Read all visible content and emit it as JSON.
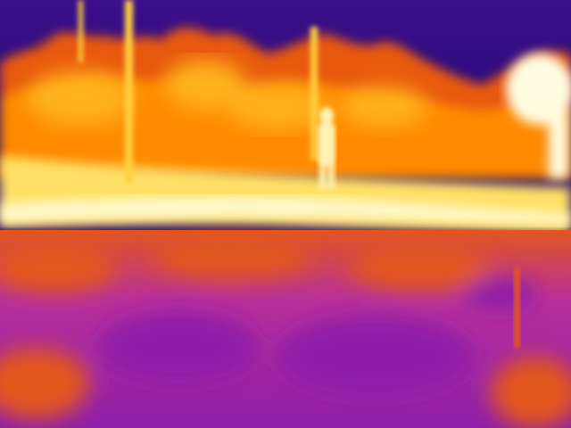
{
  "image": {
    "kind": "thermal-infrared-photo",
    "palette": "ironbow",
    "colors": {
      "sky": "#2a0a78",
      "sky_upper": "#3b0f8a",
      "treeline_hot": "#ff8a00",
      "treeline_mid": "#e8580a",
      "canopy_glow": "#ffb31a",
      "hot_band": "#ffe066",
      "hot_core": "#fff8c8",
      "ground_warm": "#e2561f",
      "ground_cool": "#b8309a",
      "ground_cold": "#8f1fa8",
      "pole": "#ffd040",
      "figure": "#fff2b0",
      "bright_patch": "#fffbe0"
    }
  }
}
